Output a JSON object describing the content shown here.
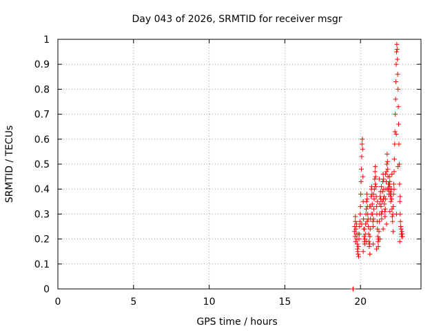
{
  "chart_data": {
    "type": "scatter",
    "title": "Day 043 of 2026, SRMTID for receiver msgr",
    "xlabel": "GPS time / hours",
    "ylabel": "SRMTID / TECUs",
    "xlim": [
      0,
      24
    ],
    "ylim": [
      0,
      1
    ],
    "xticks": [
      0,
      5,
      10,
      15,
      20
    ],
    "xtick_labels": [
      "0",
      "5",
      "10",
      "15",
      "20"
    ],
    "yticks": [
      0,
      0.1,
      0.2,
      0.3,
      0.4,
      0.5,
      0.6,
      0.7,
      0.8,
      0.9,
      1
    ],
    "ytick_labels": [
      "0",
      "0.1",
      "0.2",
      "0.3",
      "0.4",
      "0.5",
      "0.6",
      "0.7",
      "0.8",
      "0.9",
      "1"
    ],
    "grid": true,
    "marker": "+",
    "color": "#ff0000",
    "series": [
      {
        "name": "SRMTID",
        "points": [
          [
            19.5,
            0.0
          ],
          [
            19.52,
            0.0
          ],
          [
            19.6,
            0.23
          ],
          [
            19.62,
            0.25
          ],
          [
            19.64,
            0.21
          ],
          [
            19.66,
            0.27
          ],
          [
            19.68,
            0.19
          ],
          [
            19.7,
            0.24
          ],
          [
            19.72,
            0.22
          ],
          [
            19.74,
            0.26
          ],
          [
            19.76,
            0.2
          ],
          [
            19.78,
            0.18
          ],
          [
            19.8,
            0.16
          ],
          [
            19.82,
            0.15
          ],
          [
            19.84,
            0.14
          ],
          [
            19.86,
            0.17
          ],
          [
            19.88,
            0.13
          ],
          [
            19.9,
            0.2
          ],
          [
            19.92,
            0.22
          ],
          [
            19.94,
            0.25
          ],
          [
            19.96,
            0.27
          ],
          [
            19.98,
            0.3
          ],
          [
            20.0,
            0.33
          ],
          [
            20.02,
            0.38
          ],
          [
            20.04,
            0.43
          ],
          [
            20.06,
            0.48
          ],
          [
            20.08,
            0.53
          ],
          [
            20.1,
            0.58
          ],
          [
            20.12,
            0.6
          ],
          [
            20.14,
            0.56
          ],
          [
            20.16,
            0.45
          ],
          [
            20.18,
            0.35
          ],
          [
            20.2,
            0.28
          ],
          [
            20.22,
            0.24
          ],
          [
            20.24,
            0.21
          ],
          [
            20.26,
            0.19
          ],
          [
            20.28,
            0.18
          ],
          [
            20.3,
            0.2
          ],
          [
            20.32,
            0.22
          ],
          [
            20.34,
            0.26
          ],
          [
            20.36,
            0.3
          ],
          [
            20.38,
            0.32
          ],
          [
            20.4,
            0.35
          ],
          [
            20.42,
            0.38
          ],
          [
            20.44,
            0.36
          ],
          [
            20.46,
            0.33
          ],
          [
            20.48,
            0.3
          ],
          [
            20.5,
            0.28
          ],
          [
            20.52,
            0.25
          ],
          [
            20.54,
            0.22
          ],
          [
            20.56,
            0.19
          ],
          [
            20.58,
            0.17
          ],
          [
            20.6,
            0.18
          ],
          [
            20.62,
            0.21
          ],
          [
            20.64,
            0.24
          ],
          [
            20.66,
            0.28
          ],
          [
            20.68,
            0.33
          ],
          [
            20.7,
            0.37
          ],
          [
            20.72,
            0.4
          ],
          [
            20.74,
            0.41
          ],
          [
            20.76,
            0.38
          ],
          [
            20.78,
            0.34
          ],
          [
            20.8,
            0.3
          ],
          [
            20.82,
            0.27
          ],
          [
            20.84,
            0.25
          ],
          [
            20.86,
            0.28
          ],
          [
            20.88,
            0.32
          ],
          [
            20.9,
            0.36
          ],
          [
            20.92,
            0.4
          ],
          [
            20.94,
            0.44
          ],
          [
            20.96,
            0.47
          ],
          [
            20.98,
            0.49
          ],
          [
            21.0,
            0.45
          ],
          [
            21.02,
            0.41
          ],
          [
            21.04,
            0.37
          ],
          [
            21.06,
            0.33
          ],
          [
            21.08,
            0.3
          ],
          [
            21.1,
            0.27
          ],
          [
            21.12,
            0.24
          ],
          [
            21.14,
            0.21
          ],
          [
            21.16,
            0.19
          ],
          [
            21.18,
            0.17
          ],
          [
            21.2,
            0.2
          ],
          [
            21.22,
            0.23
          ],
          [
            21.24,
            0.27
          ],
          [
            21.26,
            0.3
          ],
          [
            21.28,
            0.34
          ],
          [
            21.3,
            0.37
          ],
          [
            21.32,
            0.39
          ],
          [
            21.34,
            0.36
          ],
          [
            21.36,
            0.33
          ],
          [
            21.38,
            0.3
          ],
          [
            21.4,
            0.28
          ],
          [
            21.42,
            0.31
          ],
          [
            21.44,
            0.35
          ],
          [
            21.46,
            0.39
          ],
          [
            21.48,
            0.43
          ],
          [
            21.5,
            0.46
          ],
          [
            21.52,
            0.44
          ],
          [
            21.54,
            0.4
          ],
          [
            21.56,
            0.37
          ],
          [
            21.58,
            0.34
          ],
          [
            21.6,
            0.31
          ],
          [
            21.62,
            0.29
          ],
          [
            21.64,
            0.32
          ],
          [
            21.66,
            0.36
          ],
          [
            21.68,
            0.4
          ],
          [
            21.7,
            0.43
          ],
          [
            21.72,
            0.47
          ],
          [
            21.74,
            0.5
          ],
          [
            21.76,
            0.54
          ],
          [
            21.78,
            0.51
          ],
          [
            21.8,
            0.48
          ],
          [
            21.82,
            0.45
          ],
          [
            21.84,
            0.42
          ],
          [
            21.86,
            0.4
          ],
          [
            21.88,
            0.38
          ],
          [
            21.9,
            0.42
          ],
          [
            21.92,
            0.45
          ],
          [
            21.94,
            0.41
          ],
          [
            21.96,
            0.39
          ],
          [
            21.98,
            0.37
          ],
          [
            22.0,
            0.35
          ],
          [
            22.02,
            0.38
          ],
          [
            22.04,
            0.4
          ],
          [
            22.06,
            0.36
          ],
          [
            22.08,
            0.32
          ],
          [
            22.1,
            0.29
          ],
          [
            22.12,
            0.27
          ],
          [
            22.14,
            0.3
          ],
          [
            22.16,
            0.33
          ],
          [
            22.18,
            0.38
          ],
          [
            22.2,
            0.42
          ],
          [
            22.22,
            0.47
          ],
          [
            22.24,
            0.52
          ],
          [
            22.26,
            0.58
          ],
          [
            22.28,
            0.63
          ],
          [
            22.3,
            0.7
          ],
          [
            22.32,
            0.76
          ],
          [
            22.34,
            0.83
          ],
          [
            22.36,
            0.9
          ],
          [
            22.38,
            0.95
          ],
          [
            22.4,
            0.98
          ],
          [
            22.42,
            0.96
          ],
          [
            22.44,
            0.92
          ],
          [
            22.46,
            0.86
          ],
          [
            22.48,
            0.8
          ],
          [
            22.5,
            0.73
          ],
          [
            22.52,
            0.66
          ],
          [
            22.54,
            0.58
          ],
          [
            22.56,
            0.5
          ],
          [
            22.58,
            0.42
          ],
          [
            22.6,
            0.35
          ],
          [
            22.62,
            0.3
          ],
          [
            22.64,
            0.27
          ],
          [
            22.66,
            0.25
          ],
          [
            22.68,
            0.24
          ],
          [
            22.7,
            0.22
          ],
          [
            22.72,
            0.21
          ],
          [
            22.74,
            0.23
          ],
          [
            22.76,
            0.22
          ],
          [
            22.78,
            0.21
          ],
          [
            19.66,
            0.29
          ],
          [
            19.84,
            0.22
          ],
          [
            20.08,
            0.26
          ],
          [
            20.26,
            0.24
          ],
          [
            20.44,
            0.27
          ],
          [
            20.6,
            0.33
          ],
          [
            20.72,
            0.3
          ],
          [
            20.86,
            0.38
          ],
          [
            20.98,
            0.42
          ],
          [
            21.12,
            0.35
          ],
          [
            21.24,
            0.44
          ],
          [
            21.38,
            0.41
          ],
          [
            21.52,
            0.36
          ],
          [
            21.66,
            0.46
          ],
          [
            21.8,
            0.4
          ],
          [
            21.94,
            0.43
          ],
          [
            22.08,
            0.46
          ],
          [
            22.22,
            0.4
          ],
          [
            22.36,
            0.62
          ],
          [
            22.48,
            0.49
          ],
          [
            22.62,
            0.37
          ],
          [
            20.18,
            0.15
          ],
          [
            20.4,
            0.19
          ],
          [
            20.62,
            0.14
          ],
          [
            20.84,
            0.18
          ],
          [
            21.06,
            0.16
          ],
          [
            21.28,
            0.2
          ],
          [
            21.5,
            0.24
          ],
          [
            21.72,
            0.26
          ],
          [
            21.94,
            0.31
          ],
          [
            22.16,
            0.23
          ],
          [
            22.38,
            0.3
          ],
          [
            22.6,
            0.19
          ]
        ]
      }
    ]
  }
}
